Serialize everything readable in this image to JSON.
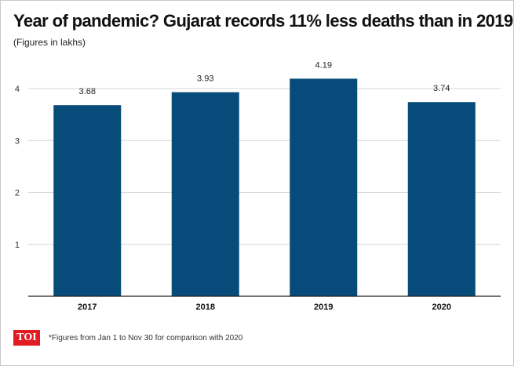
{
  "header": {
    "title": "Year of pandemic? Gujarat records 11% less deaths than in 2019",
    "subtitle": "(Figures in lakhs)"
  },
  "footer": {
    "logo_text": "TOI",
    "note": "*Figures from Jan 1 to Nov 30 for comparison with 2020"
  },
  "colors": {
    "bar": "#064b79",
    "grid": "#d6d6d6",
    "axis": "#222222",
    "brand": "#e21b22"
  },
  "chart_data": {
    "type": "bar",
    "title": "Year of pandemic? Gujarat records 11% less deaths than in 2019",
    "subtitle": "(Figures in lakhs)",
    "xlabel": "",
    "ylabel": "",
    "categories": [
      "2017",
      "2018",
      "2019",
      "2020"
    ],
    "values": [
      3.68,
      3.93,
      4.19,
      3.74
    ],
    "value_labels": [
      "3.68",
      "3.93",
      "4.19",
      "3.74"
    ],
    "y_ticks": [
      1,
      2,
      3,
      4
    ],
    "ylim": [
      0,
      4.6
    ],
    "grid": true,
    "legend": "none"
  }
}
